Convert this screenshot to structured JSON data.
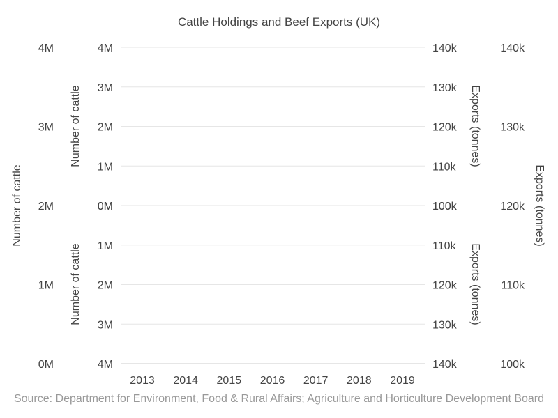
{
  "chart_data": {
    "type": "line",
    "title": "Cattle Holdings and Beef Exports (UK)",
    "source": "Source: Department for Environment, Food & Rural Affairs; Agriculture and Horticulture Development Board",
    "categories": [
      "2013",
      "2014",
      "2015",
      "2016",
      "2017",
      "2018",
      "2019"
    ],
    "series": [],
    "grid": true,
    "axes": {
      "left_outer": {
        "label": "Number of cattle",
        "ticks": [
          "4M",
          "3M",
          "2M",
          "1M",
          "0M"
        ],
        "range": [
          0,
          4000000
        ]
      },
      "left_inner_upper": {
        "label": "Number of cattle",
        "ticks": [
          "4M",
          "3M",
          "2M",
          "1M",
          "0M"
        ],
        "range": [
          0,
          4000000
        ]
      },
      "left_inner_lower": {
        "label": "Number of cattle",
        "ticks": [
          "0M",
          "1M",
          "2M",
          "3M",
          "4M"
        ],
        "range": [
          4000000,
          0
        ],
        "reversed": true
      },
      "right_inner_upper": {
        "label": "Exports (tonnes)",
        "ticks": [
          "140k",
          "130k",
          "120k",
          "110k",
          "100k"
        ],
        "range": [
          100000,
          140000
        ]
      },
      "right_inner_lower": {
        "label": "Exports (tonnes)",
        "ticks": [
          "100k",
          "110k",
          "120k",
          "130k",
          "140k"
        ],
        "range": [
          140000,
          100000
        ],
        "reversed": true
      },
      "right_outer": {
        "label": "Exports (tonnes)",
        "ticks": [
          "140k",
          "130k",
          "120k",
          "110k",
          "100k"
        ],
        "range": [
          100000,
          140000
        ]
      }
    }
  }
}
